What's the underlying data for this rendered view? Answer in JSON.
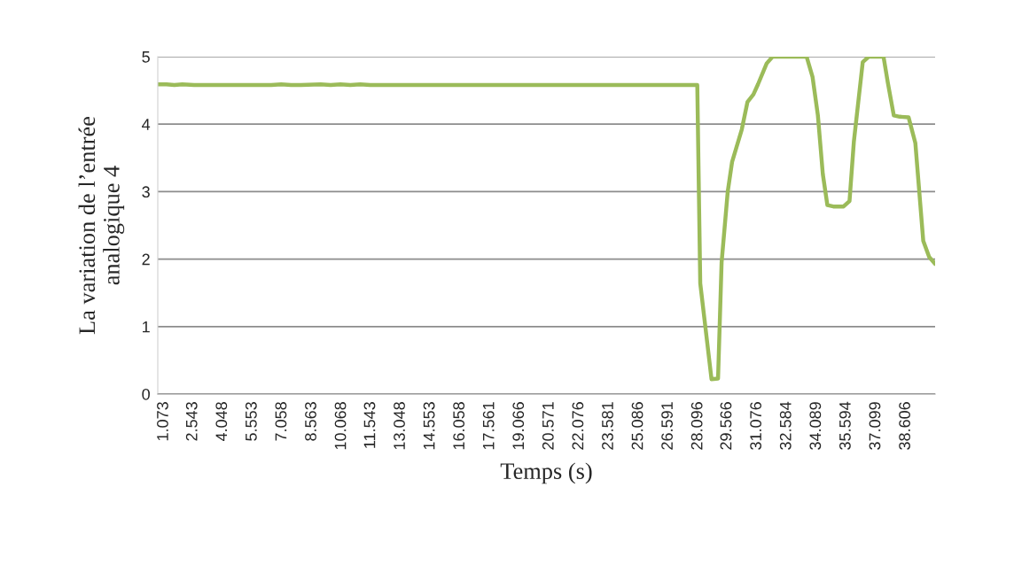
{
  "chart_data": {
    "type": "line",
    "xlabel": "Temps (s)",
    "ylabel": "La variation de l’entrée\nanalogique 4",
    "x": [
      0.76,
      1.2,
      1.6,
      2.0,
      2.6,
      3.5,
      5.0,
      6.5,
      7.0,
      7.5,
      8.0,
      9.0,
      9.5,
      10.0,
      10.5,
      11.0,
      11.5,
      13.0,
      20.0,
      27.5,
      28.05,
      28.2,
      28.77,
      29.1,
      29.28,
      29.59,
      29.81,
      30.3,
      30.59,
      30.89,
      31.12,
      31.56,
      31.86,
      33.58,
      33.88,
      34.15,
      34.4,
      34.63,
      34.93,
      35.45,
      35.75,
      35.97,
      36.42,
      36.72,
      37.47,
      37.69,
      37.99,
      38.29,
      38.74,
      39.08,
      39.48,
      39.78,
      40.08
    ],
    "series": [
      {
        "color": "#9bbb59",
        "values": [
          4.59,
          4.59,
          4.58,
          4.59,
          4.58,
          4.58,
          4.58,
          4.58,
          4.59,
          4.58,
          4.58,
          4.59,
          4.58,
          4.59,
          4.58,
          4.59,
          4.58,
          4.58,
          4.58,
          4.58,
          4.58,
          1.64,
          0.22,
          0.23,
          1.95,
          3.0,
          3.44,
          3.92,
          4.33,
          4.44,
          4.59,
          4.9,
          5.0,
          5.0,
          4.7,
          4.13,
          3.26,
          2.8,
          2.78,
          2.78,
          2.86,
          3.74,
          4.92,
          5.0,
          5.0,
          4.61,
          4.13,
          4.11,
          4.1,
          3.72,
          2.27,
          2.03,
          1.93
        ]
      }
    ],
    "xlim": [
      0.76,
      40.08
    ],
    "xticks": [
      1.073,
      2.543,
      4.048,
      5.553,
      7.058,
      8.563,
      10.068,
      11.543,
      13.048,
      14.553,
      16.058,
      17.561,
      19.066,
      20.571,
      22.076,
      23.581,
      25.086,
      26.591,
      28.096,
      29.566,
      31.076,
      32.584,
      34.089,
      35.594,
      37.099,
      38.606
    ],
    "ylim": [
      0,
      5
    ],
    "yticks": [
      0,
      1,
      2,
      3,
      4,
      5
    ],
    "grid": "y",
    "marker": "none",
    "line_style": "solid"
  }
}
